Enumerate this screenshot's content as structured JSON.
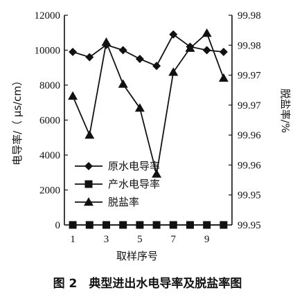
{
  "chart_data": {
    "type": "line",
    "caption": "图 2　典型进出水电导率及脱盐率图",
    "xlabel": "取样序号",
    "ylabel_left": "电导率/（ μs/cm）",
    "ylabel_right": "脱盐率/%",
    "x": [
      1,
      2,
      3,
      4,
      5,
      6,
      7,
      8,
      9,
      10
    ],
    "x_ticks": [
      1,
      3,
      5,
      7,
      9
    ],
    "y_left_lim": [
      0,
      12000
    ],
    "y_left_ticks": [
      0,
      2000,
      4000,
      6000,
      8000,
      10000,
      12000
    ],
    "y_right_lim": [
      99.945,
      99.98
    ],
    "y_right_tick_values": [
      99.945,
      99.95,
      99.955,
      99.96,
      99.965,
      99.97,
      99.975,
      99.98
    ],
    "y_right_tick_labels": [
      "99.95",
      "99.95",
      "99.96",
      "99.96",
      "99.97",
      "99.97",
      "99.98",
      "99.98"
    ],
    "legend_position": "left-middle",
    "series": [
      {
        "name": "原水电导率",
        "marker": "diamond",
        "axis": "left",
        "values": [
          9900,
          9600,
          10300,
          10000,
          9500,
          9100,
          10900,
          10200,
          10000,
          9900
        ]
      },
      {
        "name": "产水电导率",
        "marker": "square",
        "axis": "left",
        "values": [
          0,
          0,
          0,
          0,
          0,
          0,
          0,
          0,
          0,
          0
        ]
      },
      {
        "name": "脱盐率",
        "marker": "triangle",
        "axis": "right",
        "values": [
          99.9665,
          99.96,
          99.9755,
          99.9685,
          99.9645,
          99.9535,
          99.9705,
          99.9745,
          99.977,
          99.9695
        ]
      }
    ]
  }
}
